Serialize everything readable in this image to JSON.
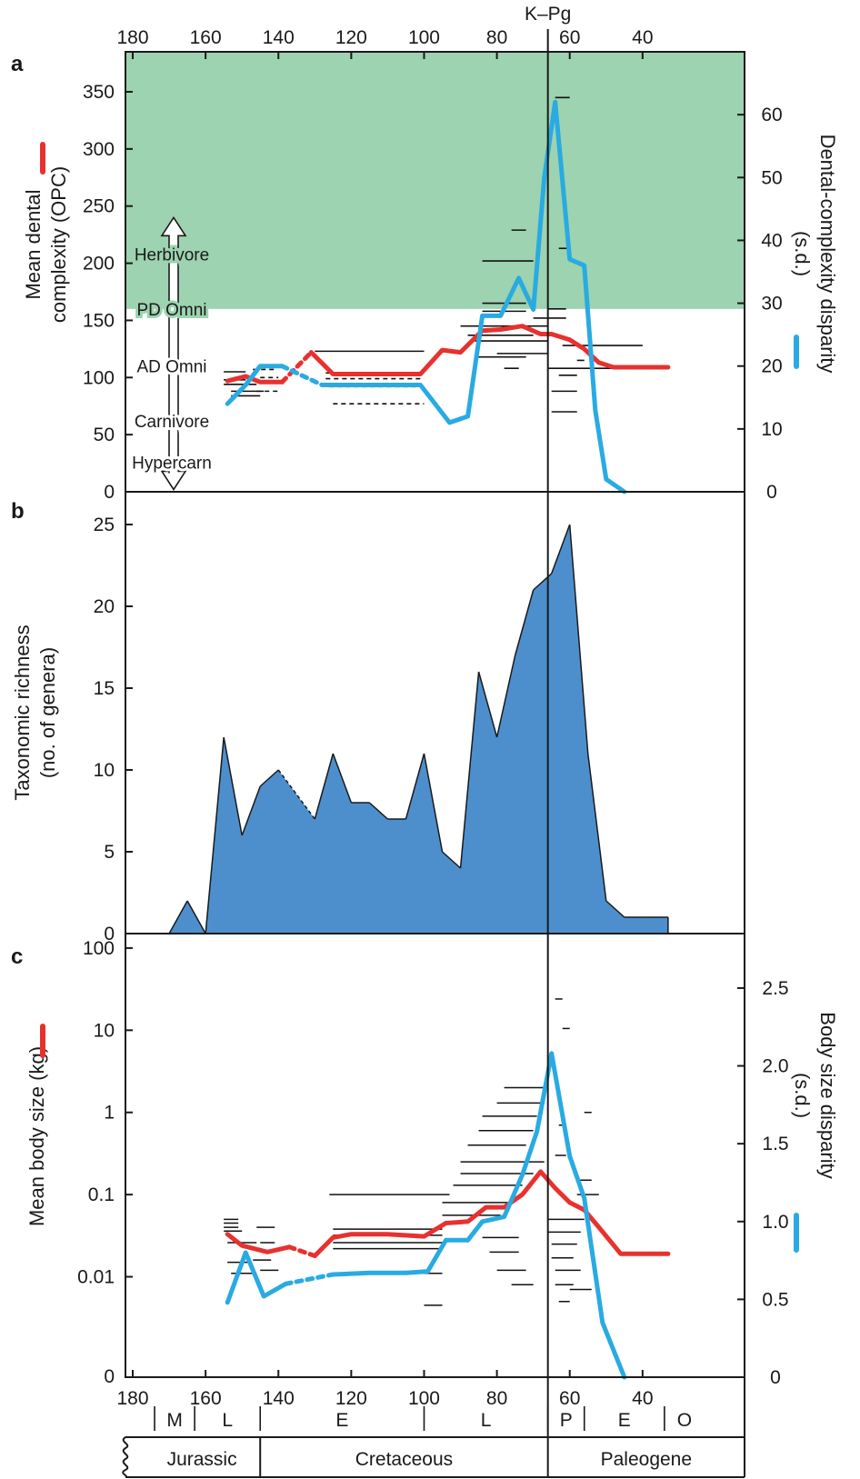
{
  "chart_data": [
    {
      "panel": "a",
      "type": "line",
      "title": "",
      "top_axis_ticks": [
        180,
        160,
        140,
        120,
        100,
        80,
        60,
        40
      ],
      "boundary_label": "K–Pg",
      "boundary_age": 66,
      "xlim": [
        182,
        12
      ],
      "ylabel": "Mean dental complexity (OPC)",
      "ylim": [
        0,
        385
      ],
      "yticks": [
        0,
        50,
        100,
        150,
        200,
        250,
        300,
        350
      ],
      "y2label": "Dental-complexity disparity (s.d.)",
      "y2lim": [
        0,
        70
      ],
      "y2ticks": [
        0,
        10,
        20,
        30,
        40,
        50,
        60
      ],
      "shaded_region": {
        "y_from": 160,
        "y_to": 385,
        "color": "#9dd3b0"
      },
      "diet_labels": [
        "Herbivore",
        "PD Omni",
        "AD Omni",
        "Carnivore",
        "Hypercarn"
      ],
      "series": [
        {
          "axis": "left",
          "color": "#e8312f",
          "segments": [
            {
              "dashed": false,
              "x": [
                154,
                149,
                145,
                139
              ],
              "y": [
                97,
                101,
                96,
                96
              ]
            },
            {
              "dashed": true,
              "x": [
                139,
                131
              ],
              "y": [
                96,
                122
              ]
            },
            {
              "dashed": false,
              "x": [
                131,
                125,
                120,
                110,
                101,
                95,
                90,
                84,
                79,
                73,
                68,
                65,
                60,
                56,
                52,
                48,
                40,
                33
              ],
              "y": [
                122,
                103,
                103,
                103,
                103,
                124,
                122,
                141,
                142,
                145,
                138,
                138,
                133,
                125,
                113,
                109,
                109,
                109
              ]
            }
          ]
        },
        {
          "axis": "right",
          "color": "#29abe2",
          "segments": [
            {
              "dashed": false,
              "x": [
                154,
                149,
                145,
                139
              ],
              "y": [
                14,
                17,
                20,
                20
              ]
            },
            {
              "dashed": true,
              "x": [
                139,
                128
              ],
              "y": [
                20,
                17
              ]
            },
            {
              "dashed": false,
              "x": [
                128,
                120,
                110,
                101,
                93,
                88,
                84,
                79,
                74,
                70,
                67,
                64,
                60,
                56,
                53,
                50,
                45
              ],
              "y": [
                17,
                17,
                17,
                17,
                11,
                12,
                28,
                28,
                34,
                29,
                50,
                62,
                37,
                36,
                13,
                2,
                0
              ]
            }
          ]
        }
      ],
      "ranges": [
        {
          "x1": 155,
          "x2": 149,
          "y": 105
        },
        {
          "x1": 155,
          "x2": 149,
          "y": 98
        },
        {
          "x1": 155,
          "x2": 146,
          "y": 94
        },
        {
          "x1": 153,
          "x2": 144,
          "y": 88
        },
        {
          "x1": 153,
          "x2": 145,
          "y": 84
        },
        {
          "x1": 147,
          "x2": 141,
          "y": 107,
          "dashed": true
        },
        {
          "x1": 146,
          "x2": 140,
          "y": 88,
          "dashed": true
        },
        {
          "x1": 145,
          "x2": 140,
          "y": 100,
          "dashed": true
        },
        {
          "x1": 130,
          "x2": 100,
          "y": 123
        },
        {
          "x1": 127,
          "x2": 103,
          "y": 104,
          "dashed": true
        },
        {
          "x1": 127,
          "x2": 100,
          "y": 99,
          "dashed": true
        },
        {
          "x1": 126,
          "x2": 100,
          "y": 92,
          "dashed": true
        },
        {
          "x1": 125,
          "x2": 100,
          "y": 77,
          "dashed": true
        },
        {
          "x1": 90,
          "x2": 66,
          "y": 145
        },
        {
          "x1": 88,
          "x2": 70,
          "y": 137
        },
        {
          "x1": 86,
          "x2": 66,
          "y": 132
        },
        {
          "x1": 80,
          "x2": 66,
          "y": 121
        },
        {
          "x1": 86,
          "x2": 72,
          "y": 118
        },
        {
          "x1": 84,
          "x2": 72,
          "y": 165
        },
        {
          "x1": 84,
          "x2": 72,
          "y": 158
        },
        {
          "x1": 84,
          "x2": 70,
          "y": 202
        },
        {
          "x1": 76,
          "x2": 72,
          "y": 229
        },
        {
          "x1": 66,
          "x2": 61,
          "y": 160
        },
        {
          "x1": 62,
          "x2": 40,
          "y": 128
        },
        {
          "x1": 66,
          "x2": 48,
          "y": 108
        },
        {
          "x1": 58,
          "x2": 56,
          "y": 115
        },
        {
          "x1": 65,
          "x2": 58,
          "y": 88
        },
        {
          "x1": 65,
          "x2": 58,
          "y": 70
        },
        {
          "x1": 63,
          "x2": 58,
          "y": 102
        },
        {
          "x1": 64,
          "x2": 60,
          "y": 345
        },
        {
          "x1": 63,
          "x2": 60,
          "y": 213
        },
        {
          "x1": 70,
          "x2": 61,
          "y": 152
        },
        {
          "x1": 78,
          "x2": 74,
          "y": 108
        }
      ]
    },
    {
      "panel": "b",
      "type": "area",
      "title": "",
      "ylabel": "Taxonomic richness (no. of genera)",
      "ylim": [
        0,
        27
      ],
      "yticks": [
        0,
        5,
        10,
        15,
        20,
        25
      ],
      "fill_color": "#4d8fcd",
      "x": [
        170,
        165,
        160,
        155,
        150,
        145,
        140,
        130,
        125,
        120,
        115,
        110,
        105,
        100,
        95,
        90,
        85,
        80,
        75,
        70,
        65,
        60,
        55,
        50,
        45,
        40,
        33
      ],
      "values": [
        0,
        2,
        0,
        12,
        6,
        9,
        10,
        7,
        11,
        8,
        8,
        7,
        7,
        11,
        5,
        4,
        16,
        12,
        17,
        21,
        22,
        25,
        11,
        2,
        1,
        1,
        1
      ],
      "dashed_segment": [
        140,
        130
      ]
    },
    {
      "panel": "c",
      "type": "line",
      "title": "",
      "ylabel": "Mean body size (kg)",
      "yscale": "log",
      "ylim": [
        0.0006,
        150
      ],
      "yticks": [
        0.01,
        0.1,
        1,
        10,
        100
      ],
      "ytick_labels": [
        "0.01",
        "0.1",
        "1",
        "10",
        "100"
      ],
      "bottom_tick_label": "0",
      "y2label": "Body size disparity (s.d.)",
      "y2lim": [
        0,
        2.85
      ],
      "y2ticks": [
        0,
        0.5,
        1.0,
        1.5,
        2.0,
        2.5
      ],
      "y2tick_labels": [
        "0",
        "0.5",
        "1.0",
        "1.5",
        "2.0",
        "2.5"
      ],
      "xticks": [
        180,
        160,
        140,
        120,
        100,
        80,
        60,
        40
      ],
      "series": [
        {
          "axis": "left",
          "color": "#e8312f",
          "segments": [
            {
              "dashed": false,
              "x": [
                154,
                150,
                143,
                137
              ],
              "y": [
                0.033,
                0.024,
                0.02,
                0.023
              ]
            },
            {
              "dashed": true,
              "x": [
                137,
                130
              ],
              "y": [
                0.023,
                0.018
              ]
            },
            {
              "dashed": false,
              "x": [
                130,
                125,
                120,
                110,
                100,
                94,
                88,
                83,
                78,
                73,
                68,
                64,
                60,
                56,
                52,
                46,
                40,
                33
              ],
              "y": [
                0.018,
                0.03,
                0.033,
                0.033,
                0.031,
                0.045,
                0.047,
                0.07,
                0.07,
                0.1,
                0.19,
                0.12,
                0.08,
                0.065,
                0.04,
                0.019,
                0.019,
                0.019
              ]
            }
          ]
        },
        {
          "axis": "right",
          "color": "#29abe2",
          "segments": [
            {
              "dashed": false,
              "x": [
                154,
                149,
                144,
                138
              ],
              "y": [
                0.48,
                0.8,
                0.52,
                0.6
              ]
            },
            {
              "dashed": true,
              "x": [
                138,
                125
              ],
              "y": [
                0.6,
                0.66
              ]
            },
            {
              "dashed": false,
              "x": [
                125,
                115,
                105,
                99,
                94,
                88,
                84,
                78,
                73,
                69,
                65,
                60,
                56,
                51,
                45
              ],
              "y": [
                0.66,
                0.67,
                0.67,
                0.68,
                0.88,
                0.88,
                1.0,
                1.03,
                1.3,
                1.58,
                2.08,
                1.42,
                1.15,
                0.35,
                0.0
              ]
            }
          ]
        }
      ],
      "ranges": [
        {
          "x1": 155,
          "x2": 151,
          "y": 0.05
        },
        {
          "x1": 155,
          "x2": 151,
          "y": 0.045
        },
        {
          "x1": 155,
          "x2": 151,
          "y": 0.04
        },
        {
          "x1": 155,
          "x2": 150,
          "y": 0.036
        },
        {
          "x1": 154,
          "x2": 146,
          "y": 0.026
        },
        {
          "x1": 154,
          "x2": 148,
          "y": 0.015
        },
        {
          "x1": 153,
          "x2": 146,
          "y": 0.011
        },
        {
          "x1": 147,
          "x2": 142,
          "y": 0.016
        },
        {
          "x1": 146,
          "x2": 141,
          "y": 0.04
        },
        {
          "x1": 145,
          "x2": 140,
          "y": 0.012
        },
        {
          "x1": 145,
          "x2": 141,
          "y": 0.026
        },
        {
          "x1": 126,
          "x2": 93,
          "y": 0.1
        },
        {
          "x1": 125,
          "x2": 95,
          "y": 0.038
        },
        {
          "x1": 125,
          "x2": 95,
          "y": 0.032
        },
        {
          "x1": 125,
          "x2": 95,
          "y": 0.026
        },
        {
          "x1": 125,
          "x2": 96,
          "y": 0.022
        },
        {
          "x1": 124,
          "x2": 95,
          "y": 0.011
        },
        {
          "x1": 100,
          "x2": 95,
          "y": 0.0045
        },
        {
          "x1": 95,
          "x2": 79,
          "y": 0.056
        },
        {
          "x1": 95,
          "x2": 76,
          "y": 0.08
        },
        {
          "x1": 92,
          "x2": 73,
          "y": 0.13
        },
        {
          "x1": 90,
          "x2": 70,
          "y": 0.18
        },
        {
          "x1": 90,
          "x2": 67,
          "y": 0.25
        },
        {
          "x1": 88,
          "x2": 72,
          "y": 0.4
        },
        {
          "x1": 85,
          "x2": 70,
          "y": 0.6
        },
        {
          "x1": 84,
          "x2": 69,
          "y": 0.9
        },
        {
          "x1": 80,
          "x2": 67,
          "y": 1.3
        },
        {
          "x1": 78,
          "x2": 66,
          "y": 2.0
        },
        {
          "x1": 84,
          "x2": 74,
          "y": 0.03
        },
        {
          "x1": 82,
          "x2": 74,
          "y": 0.02
        },
        {
          "x1": 80,
          "x2": 72,
          "y": 0.012
        },
        {
          "x1": 76,
          "x2": 70,
          "y": 0.008
        },
        {
          "x1": 66,
          "x2": 56,
          "y": 0.05
        },
        {
          "x1": 66,
          "x2": 57,
          "y": 0.035
        },
        {
          "x1": 65,
          "x2": 58,
          "y": 0.025
        },
        {
          "x1": 65,
          "x2": 59,
          "y": 0.017
        },
        {
          "x1": 64,
          "x2": 57,
          "y": 0.012
        },
        {
          "x1": 64,
          "x2": 59,
          "y": 0.008
        },
        {
          "x1": 63,
          "x2": 60,
          "y": 0.005
        },
        {
          "x1": 60,
          "x2": 54,
          "y": 0.007
        },
        {
          "x1": 58,
          "x2": 52,
          "y": 0.1
        },
        {
          "x1": 58,
          "x2": 54,
          "y": 0.15
        },
        {
          "x1": 64,
          "x2": 61,
          "y": 0.3
        },
        {
          "x1": 63,
          "x2": 61,
          "y": 0.7
        },
        {
          "x1": 64,
          "x2": 62,
          "y": 24
        },
        {
          "x1": 62,
          "x2": 60,
          "y": 10.5
        },
        {
          "x1": 56,
          "x2": 54,
          "y": 1.0
        }
      ]
    }
  ],
  "timescale": {
    "epochs": [
      {
        "label": "M",
        "from": 174,
        "to": 163
      },
      {
        "label": "L",
        "from": 163,
        "to": 145
      },
      {
        "label": "E",
        "from": 145,
        "to": 100
      },
      {
        "label": "L",
        "from": 100,
        "to": 66
      },
      {
        "label": "P",
        "from": 66,
        "to": 56
      },
      {
        "label": "E",
        "from": 56,
        "to": 34
      },
      {
        "label": "O",
        "from": 34,
        "to": 23
      }
    ],
    "periods": [
      {
        "label": "Jurassic",
        "from": 182,
        "to": 145
      },
      {
        "label": "Cretaceous",
        "from": 145,
        "to": 66
      },
      {
        "label": "Paleogene",
        "from": 66,
        "to": 12
      }
    ]
  },
  "colors": {
    "red": "#e8312f",
    "blue": "#29abe2",
    "green": "#9dd3b0",
    "area": "#4d8fcd"
  }
}
